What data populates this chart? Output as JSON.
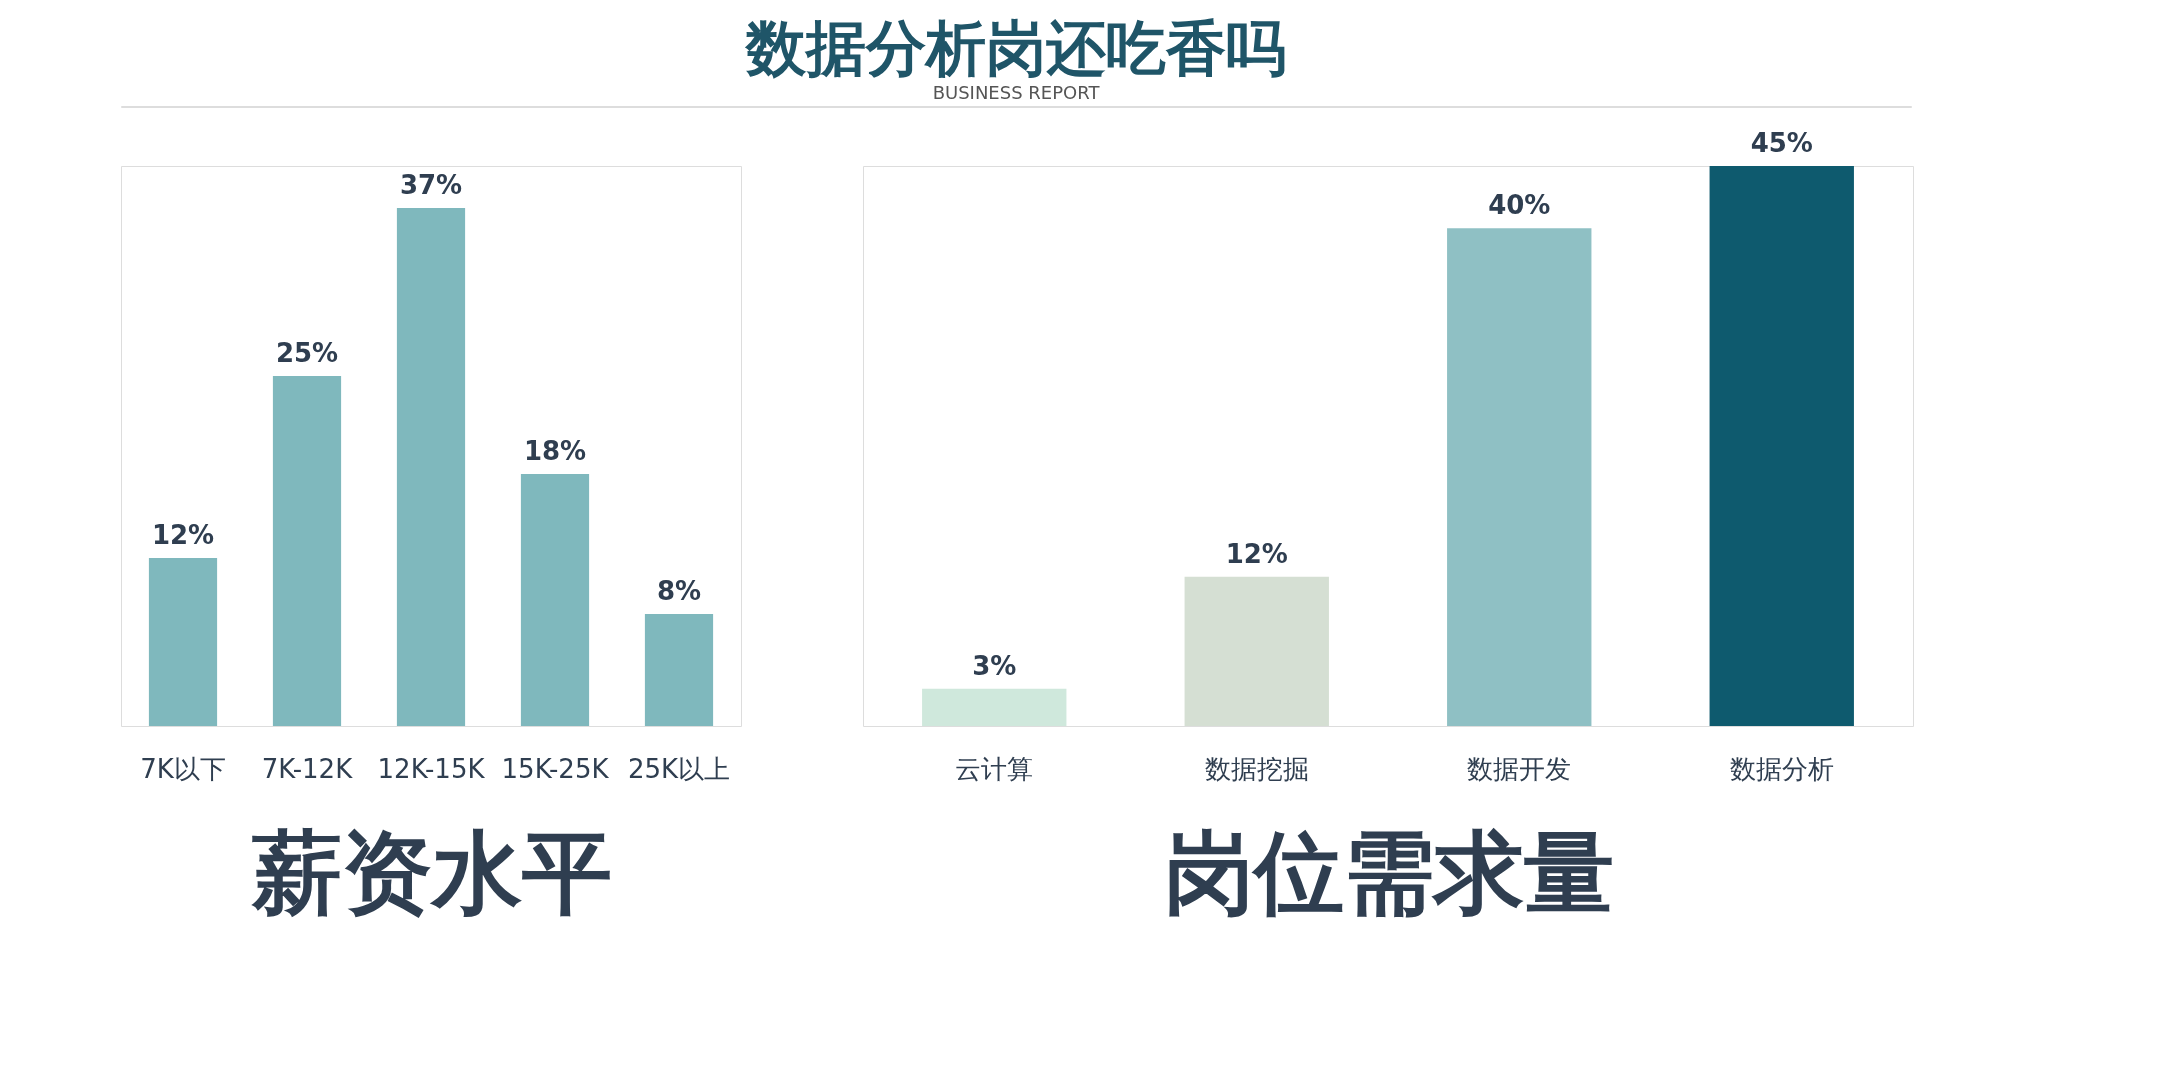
{
  "chart_data": [
    {
      "type": "other",
      "title": "数据分析岗还吃香吗",
      "subtitle": "BUSINESS REPORT"
    },
    {
      "type": "bar",
      "xlabel": "薪资水平",
      "categories": [
        "7K以下",
        "7K-12K",
        "12K-15K",
        "15K-25K",
        "25K以上"
      ],
      "values": [
        12,
        25,
        37,
        18,
        8
      ],
      "value_labels": [
        "12%",
        "25%",
        "37%",
        "18%",
        "8%"
      ],
      "color": "#7fb8bd",
      "tick_labels": "x",
      "grid": false
    },
    {
      "type": "bar",
      "xlabel": "岗位需求量",
      "categories": [
        "云计算",
        "数据挖掘",
        "数据开发",
        "数据分析"
      ],
      "values": [
        3,
        12,
        40,
        45
      ],
      "value_labels": [
        "3%",
        "12%",
        "40%",
        "45%"
      ],
      "colors": [
        "#cfe8dc",
        "#d5dfd3",
        "#8fc0c4",
        "#0e5a6e"
      ],
      "tick_labels": "x",
      "grid": false
    }
  ]
}
